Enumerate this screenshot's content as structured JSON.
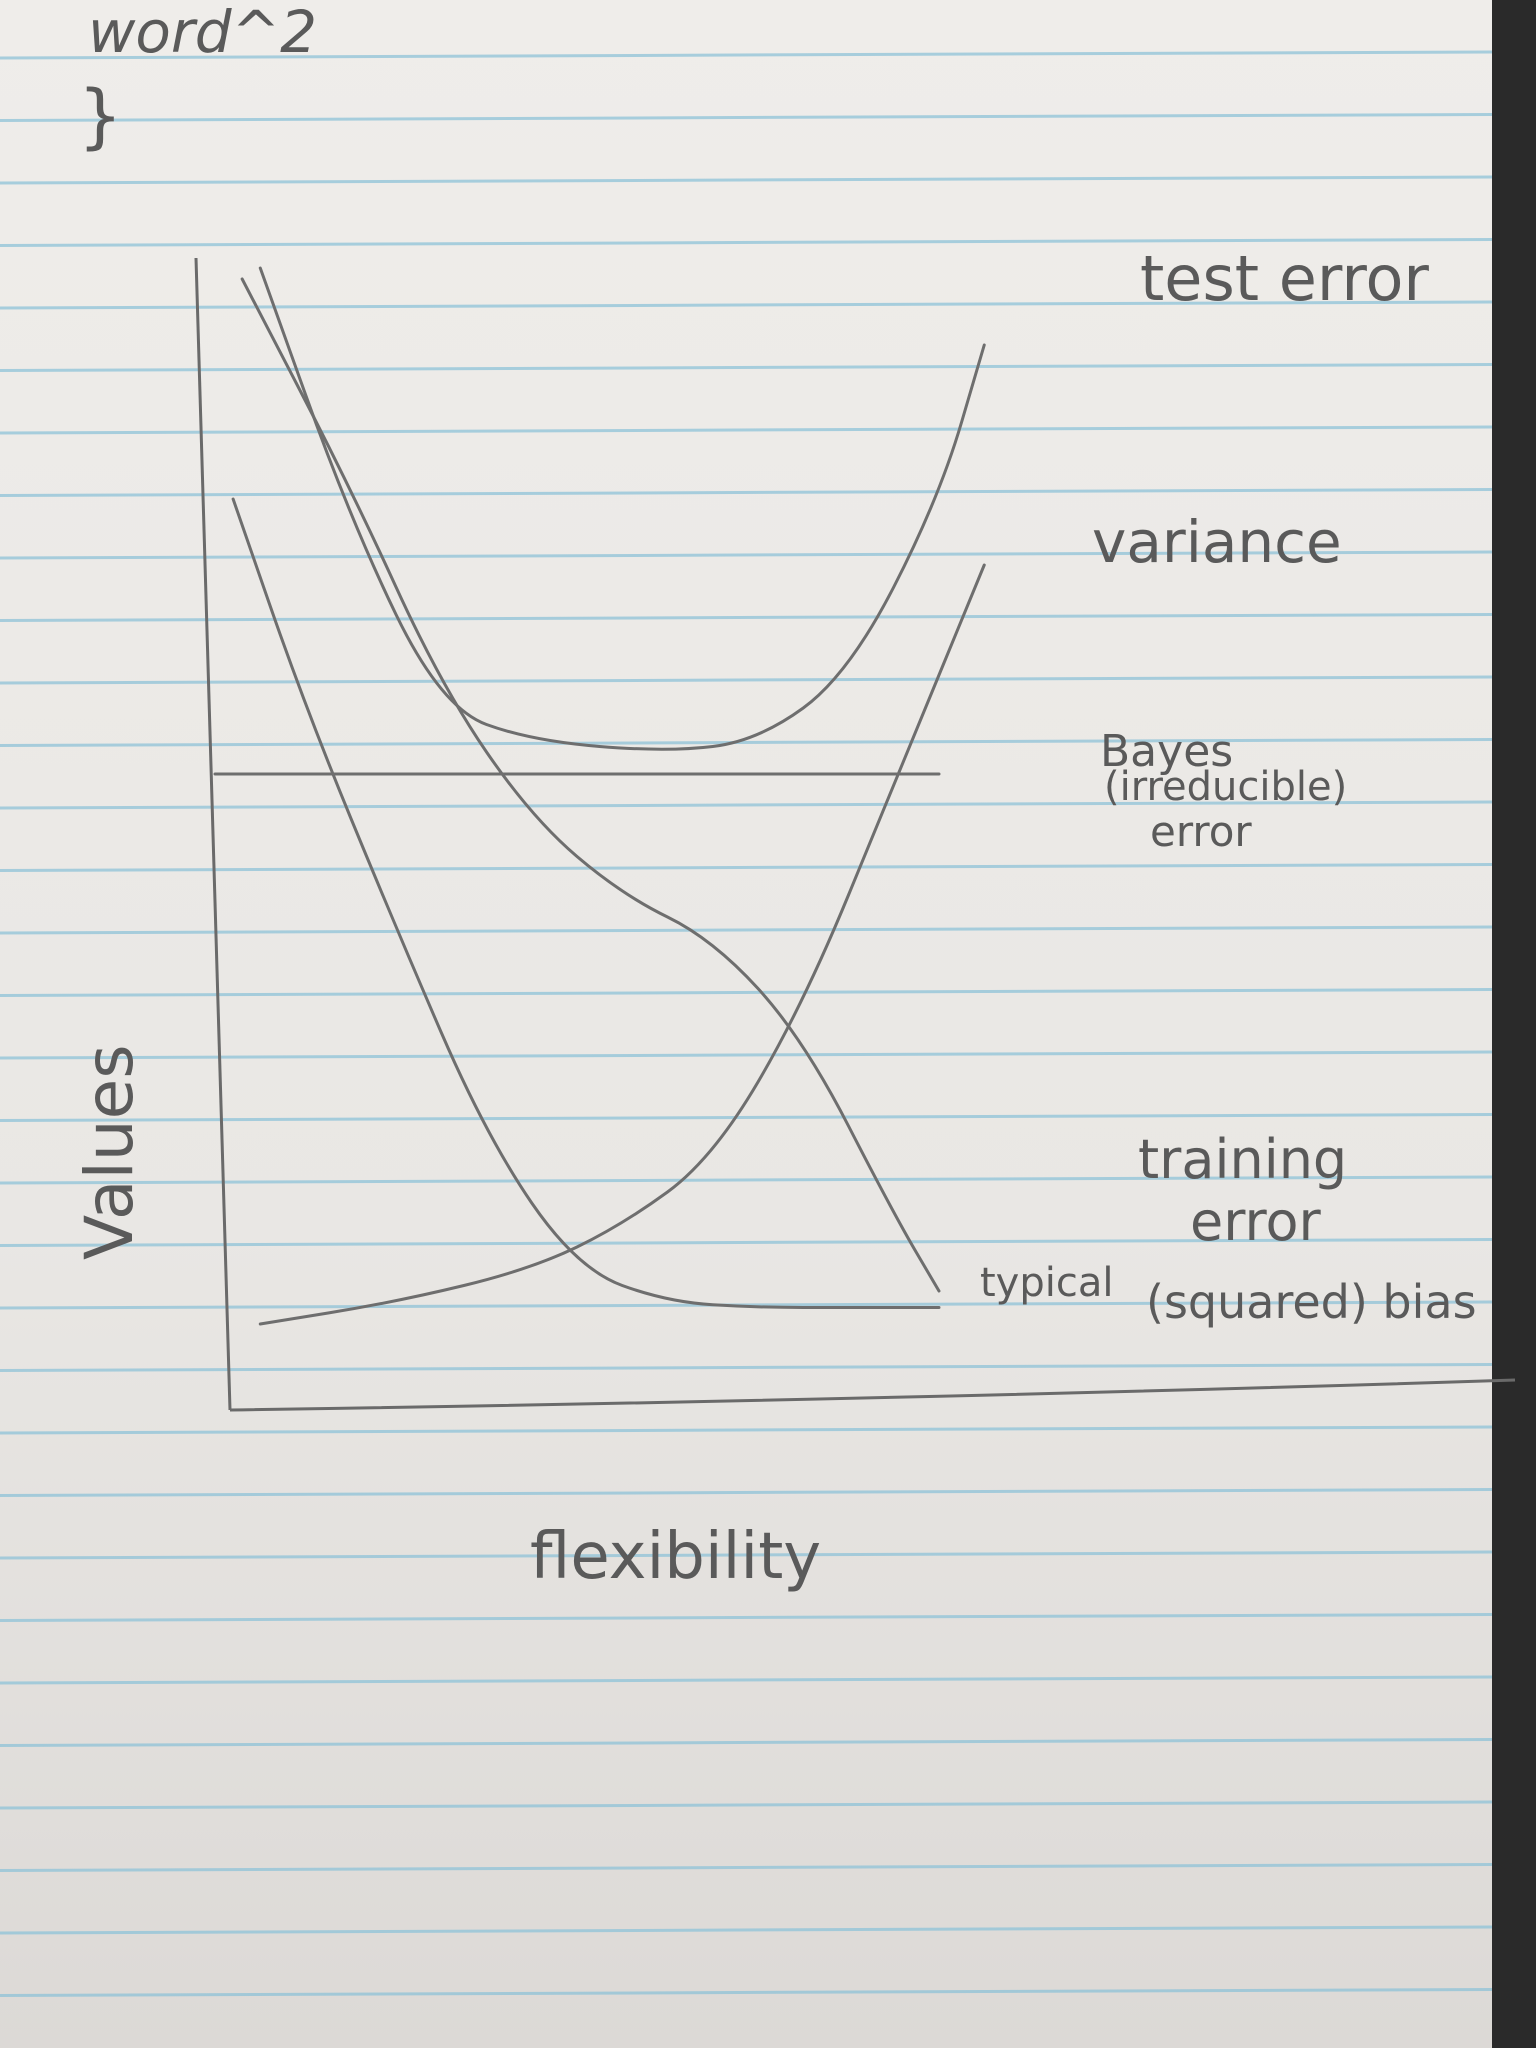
{
  "page": {
    "header_scribble": "word^2",
    "header_brace": "}"
  },
  "colors": {
    "paper": "#ecebe8",
    "rule_line": "#8fc3d8",
    "pencil": "#6e6e6e",
    "pencil_text": "#5a5a5a"
  },
  "chart_data": {
    "type": "line",
    "xlabel": "flexibility",
    "ylabel": "Values",
    "xlim": [
      0,
      10
    ],
    "ylim": [
      0,
      10
    ],
    "grid": false,
    "legend": "labels at right end of each curve",
    "series": [
      {
        "name": "test error",
        "x": [
          0.5,
          1.5,
          2.5,
          3.5,
          5.0,
          6.0,
          7.0,
          8.0,
          8.5
        ],
        "y": [
          10.2,
          7.9,
          6.2,
          5.9,
          5.8,
          5.9,
          6.5,
          8.1,
          9.5
        ]
      },
      {
        "name": "variance",
        "x": [
          0.5,
          2.0,
          3.5,
          4.5,
          5.5,
          6.5,
          7.5,
          8.5
        ],
        "y": [
          0.6,
          0.8,
          1.1,
          1.5,
          2.1,
          3.5,
          5.5,
          7.5
        ]
      },
      {
        "name": "Bayes (irreducible) error",
        "x": [
          0.0,
          8.0
        ],
        "y": [
          5.6,
          5.6
        ]
      },
      {
        "name": "training error",
        "x": [
          0.3,
          1.5,
          2.5,
          3.5,
          4.5,
          5.5,
          6.5,
          7.5,
          8.0
        ],
        "y": [
          10.1,
          8.2,
          6.4,
          5.2,
          4.5,
          4.1,
          3.2,
          1.6,
          0.9
        ]
      },
      {
        "name": "typical (squared) bias",
        "x": [
          0.2,
          1.0,
          2.0,
          3.0,
          4.0,
          5.0,
          6.0,
          7.0,
          8.0
        ],
        "y": [
          8.1,
          6.2,
          4.2,
          2.3,
          1.1,
          0.8,
          0.75,
          0.75,
          0.75
        ]
      }
    ],
    "labels": {
      "test_error": "test error",
      "variance": "variance",
      "bayes_1": "Bayes",
      "bayes_2": "(irreducible)",
      "bayes_3": "error",
      "training_1": "training",
      "training_2": "error",
      "bias_1": "typical",
      "bias_2": "(squared) bias"
    }
  }
}
